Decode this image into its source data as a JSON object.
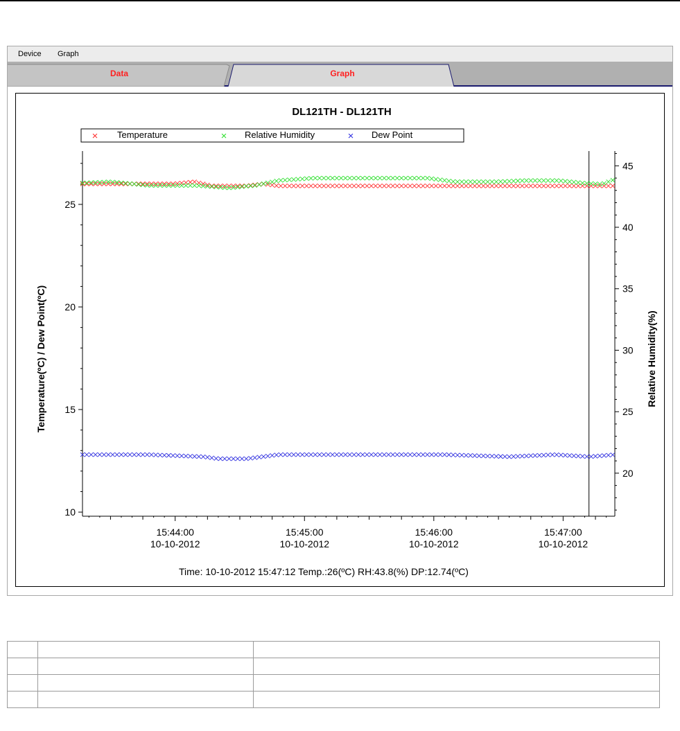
{
  "menu": {
    "items": [
      "Device",
      "Graph"
    ]
  },
  "tabs": [
    {
      "label": "Data",
      "active": false
    },
    {
      "label": "Graph",
      "active": true
    }
  ],
  "colors": {
    "temperature": "#ff3030",
    "humidity": "#30e030",
    "dewpoint": "#3030e0",
    "tab_label": "#ff2020"
  },
  "chart_data": {
    "type": "scatter",
    "title": "DL121TH - DL121TH",
    "ylabel": "Temperature(ºC) / Dew Point(ºC)",
    "y2label": "Relative Humidity(%)",
    "ylim": [
      9.8,
      27.6
    ],
    "y2lim": [
      16.5,
      46.2
    ],
    "yticks": [
      10,
      15,
      20,
      25
    ],
    "y2ticks": [
      20,
      25,
      30,
      35,
      40,
      45
    ],
    "xlim": [
      "15:43:17",
      "15:47:24"
    ],
    "xticks": [
      {
        "time": "15:44:00",
        "date": "10-10-2012"
      },
      {
        "time": "15:45:00",
        "date": "10-10-2012"
      },
      {
        "time": "15:46:00",
        "date": "10-10-2012"
      },
      {
        "time": "15:47:00",
        "date": "10-10-2012"
      }
    ],
    "cursor_time": "15:47:12",
    "legend": {
      "placement": "top",
      "entries": [
        "Temperature",
        "Relative Humidity",
        "Dew Point"
      ]
    },
    "series": [
      {
        "name": "Temperature",
        "axis": "left",
        "points": [
          [
            "15:43:17",
            26.0
          ],
          [
            "15:43:36",
            26.0
          ],
          [
            "15:43:59",
            26.0
          ],
          [
            "15:44:09",
            26.1
          ],
          [
            "15:44:17",
            25.9
          ],
          [
            "15:44:33",
            25.9
          ],
          [
            "15:44:41",
            26.0
          ],
          [
            "15:44:48",
            25.9
          ],
          [
            "15:45:14",
            25.9
          ],
          [
            "15:45:45",
            25.9
          ],
          [
            "15:46:17",
            25.9
          ],
          [
            "15:46:50",
            25.9
          ],
          [
            "15:47:21",
            25.9
          ],
          [
            "15:47:24",
            25.9
          ]
        ]
      },
      {
        "name": "Relative Humidity",
        "axis": "right",
        "points": [
          [
            "15:43:17",
            43.6
          ],
          [
            "15:43:30",
            43.7
          ],
          [
            "15:43:48",
            43.4
          ],
          [
            "15:44:10",
            43.4
          ],
          [
            "15:44:25",
            43.2
          ],
          [
            "15:44:37",
            43.4
          ],
          [
            "15:44:48",
            43.8
          ],
          [
            "15:45:04",
            44.0
          ],
          [
            "15:45:30",
            44.0
          ],
          [
            "15:45:57",
            44.0
          ],
          [
            "15:46:10",
            43.7
          ],
          [
            "15:46:29",
            43.7
          ],
          [
            "15:46:42",
            43.8
          ],
          [
            "15:46:58",
            43.8
          ],
          [
            "15:47:09",
            43.6
          ],
          [
            "15:47:18",
            43.5
          ],
          [
            "15:47:24",
            43.9
          ]
        ]
      },
      {
        "name": "Dew Point",
        "axis": "left",
        "points": [
          [
            "15:43:17",
            12.8
          ],
          [
            "15:43:48",
            12.8
          ],
          [
            "15:44:13",
            12.7
          ],
          [
            "15:44:20",
            12.6
          ],
          [
            "15:44:33",
            12.6
          ],
          [
            "15:44:48",
            12.8
          ],
          [
            "15:45:30",
            12.8
          ],
          [
            "15:46:05",
            12.8
          ],
          [
            "15:46:35",
            12.7
          ],
          [
            "15:46:56",
            12.8
          ],
          [
            "15:47:12",
            12.7
          ],
          [
            "15:47:24",
            12.8
          ]
        ]
      }
    ],
    "status": "Time: 10-10-2012 15:47:12 Temp.:26(ºC) RH:43.8(%) DP:12.74(ºC)"
  }
}
